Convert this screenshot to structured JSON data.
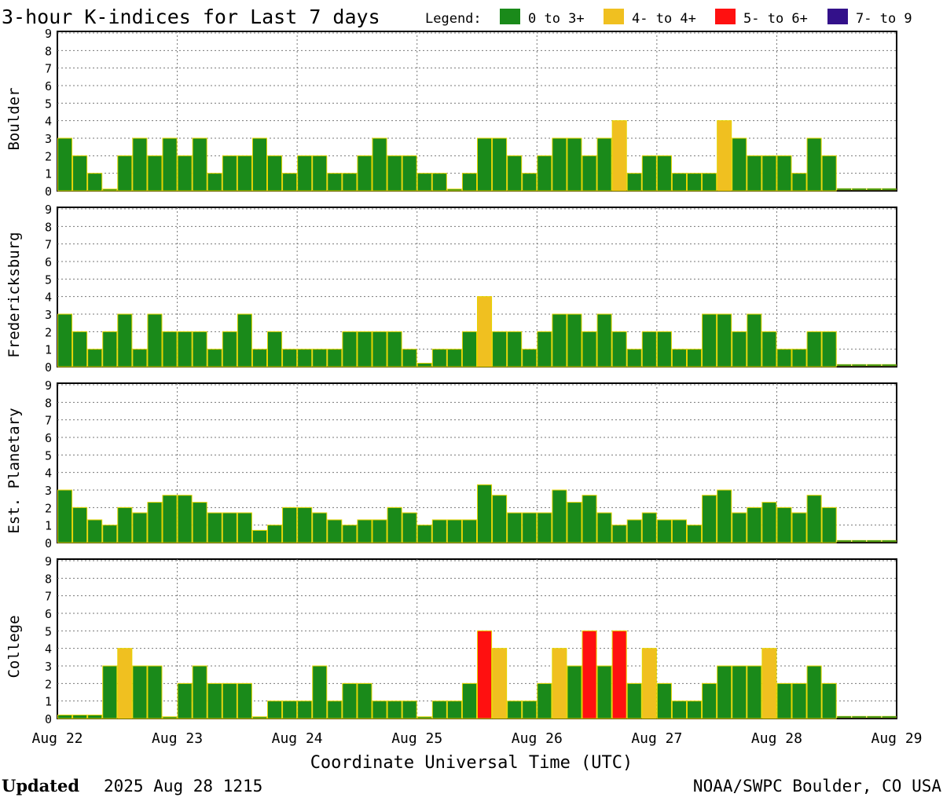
{
  "chart_data": {
    "type": "bar",
    "title": "3-hour K-indices for Last 7 days",
    "legend": {
      "label": "Legend:",
      "entries": [
        {
          "label": "0 to 3+",
          "color": "#1a8a1a"
        },
        {
          "label": "4- to 4+",
          "color": "#f0c020"
        },
        {
          "label": "5- to 6+",
          "color": "#ff1010"
        },
        {
          "label": "7- to 9",
          "color": "#33118a"
        }
      ]
    },
    "xlabel": "Coordinate Universal Time (UTC)",
    "x_ticks": [
      "Aug 22",
      "Aug 23",
      "Aug 24",
      "Aug 25",
      "Aug 26",
      "Aug 27",
      "Aug 28",
      "Aug 29"
    ],
    "ylim": [
      0,
      9
    ],
    "y_ticks": [
      "0",
      "1",
      "2",
      "3",
      "4",
      "5",
      "6",
      "7",
      "8",
      "9"
    ],
    "grid": true,
    "bar_outline_color": "#e6d400",
    "panels": [
      {
        "name": "Boulder",
        "values": [
          3,
          2,
          1,
          0.1,
          2,
          3,
          2,
          3,
          2,
          3,
          1,
          2,
          2,
          3,
          2,
          1,
          2,
          2,
          1,
          1,
          2,
          3,
          2,
          2,
          1,
          1,
          0.1,
          1,
          3,
          3,
          2,
          1,
          2,
          3,
          3,
          2,
          3,
          4,
          1,
          2,
          2,
          1,
          1,
          1,
          4,
          3,
          2,
          2,
          2,
          1,
          3,
          2
        ]
      },
      {
        "name": "Fredericksburg",
        "values": [
          3,
          2,
          1,
          2,
          3,
          1,
          3,
          2,
          2,
          2,
          1,
          2,
          3,
          1,
          2,
          1,
          1,
          1,
          1,
          2,
          2,
          2,
          2,
          1,
          0.2,
          1,
          1,
          2,
          4,
          2,
          2,
          1,
          2,
          3,
          3,
          2,
          3,
          2,
          1,
          2,
          2,
          1,
          1,
          3,
          3,
          2,
          3,
          2,
          1,
          1,
          2,
          2
        ]
      },
      {
        "name": "Est. Planetary",
        "values": [
          3,
          2,
          1.3,
          1,
          2,
          1.7,
          2.3,
          2.7,
          2.7,
          2.3,
          1.7,
          1.7,
          1.7,
          0.7,
          1,
          2,
          2,
          1.7,
          1.3,
          1,
          1.3,
          1.3,
          2,
          1.7,
          1,
          1.3,
          1.3,
          1.3,
          3.3,
          2.7,
          1.7,
          1.7,
          1.7,
          3,
          2.3,
          2.7,
          1.7,
          1,
          1.3,
          1.7,
          1.3,
          1.3,
          1,
          2.7,
          3,
          1.7,
          2,
          2.3,
          2,
          1.7,
          2.7,
          2
        ]
      },
      {
        "name": "College",
        "values": [
          0.2,
          0.2,
          0.2,
          3,
          4,
          3,
          3,
          0.1,
          2,
          3,
          2,
          2,
          2,
          0.1,
          1,
          1,
          1,
          3,
          1,
          2,
          2,
          1,
          1,
          1,
          0.1,
          1,
          1,
          2,
          5,
          4,
          1,
          1,
          2,
          4,
          3,
          5,
          3,
          5,
          2,
          4,
          2,
          1,
          1,
          2,
          3,
          3,
          3,
          4,
          2,
          2,
          3,
          2
        ]
      }
    ]
  },
  "footer": {
    "updated_label": "Updated",
    "updated_value": "2025 Aug 28 1215",
    "credit": "NOAA/SWPC Boulder, CO USA"
  }
}
